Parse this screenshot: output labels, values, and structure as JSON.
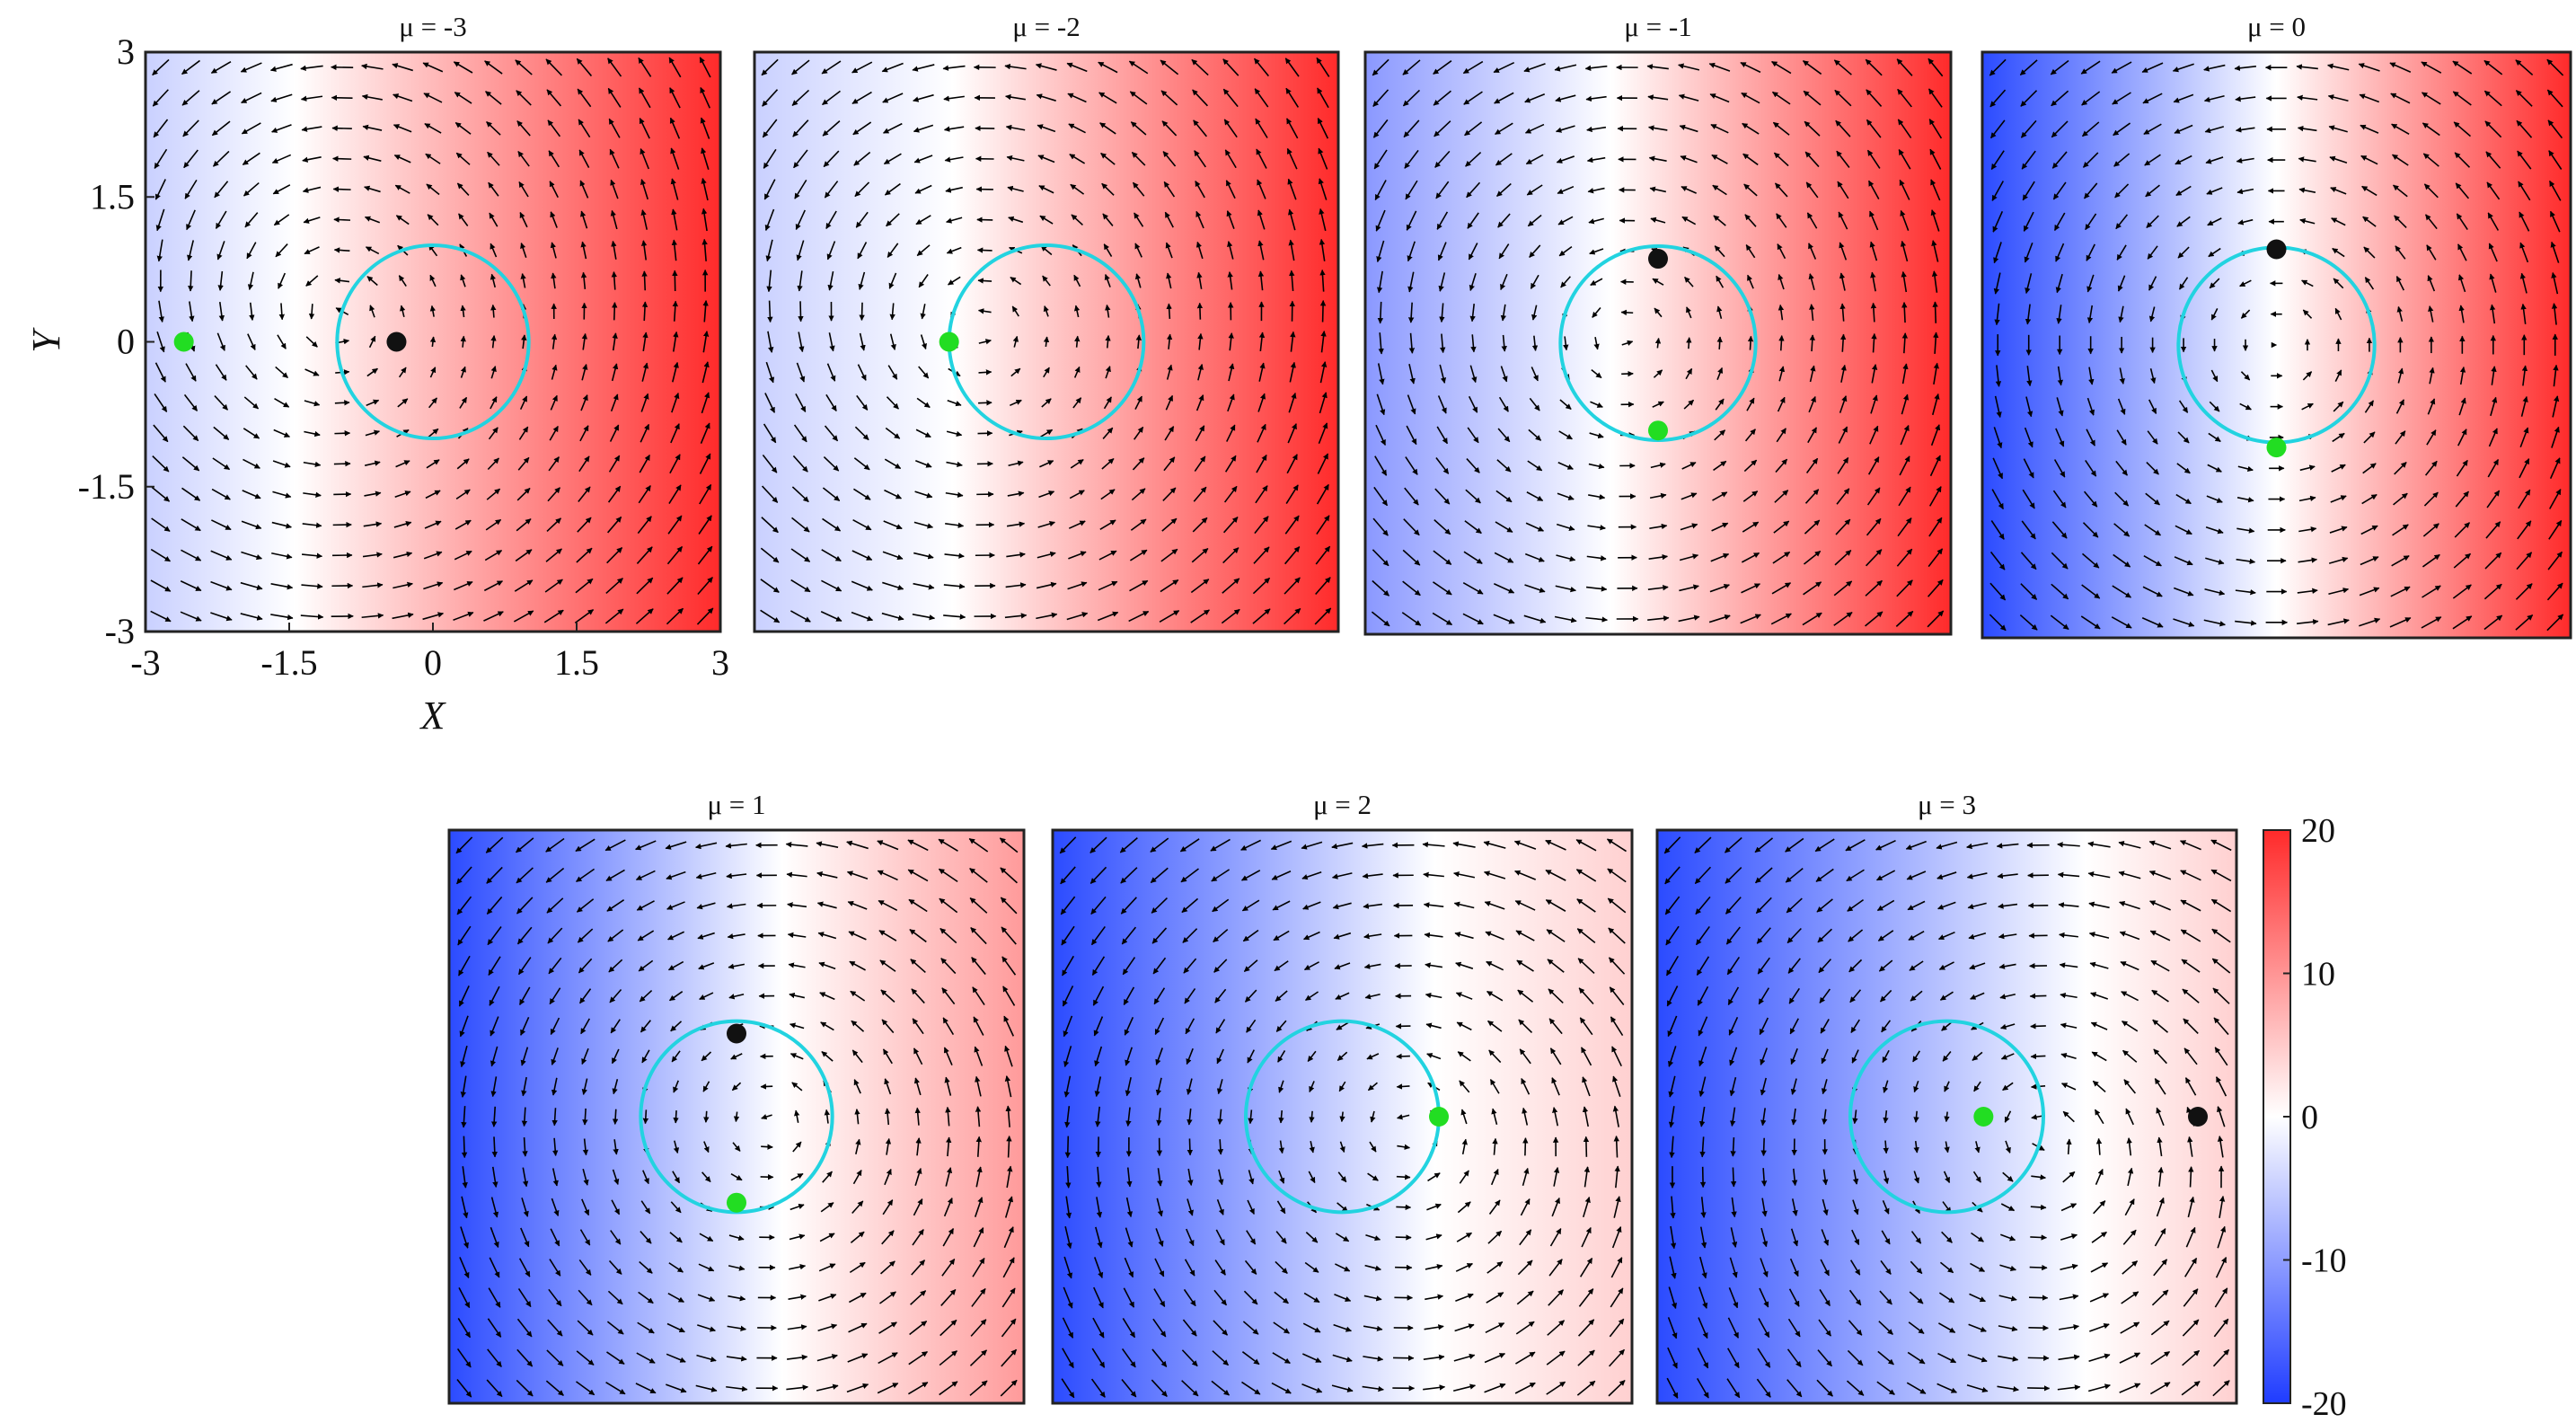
{
  "chart_data": {
    "type": "heatmap",
    "description_of_field": "quiver",
    "xlabel": "X",
    "ylabel": "Y",
    "xlim": [
      -3,
      3
    ],
    "ylim": [
      -3,
      3
    ],
    "xticks": [
      "-3",
      "-1.5",
      "0",
      "1.5",
      "3"
    ],
    "yticks": [
      "3",
      "1.5",
      "0",
      "-1.5",
      "-3"
    ],
    "colorbar": {
      "range": [
        -20,
        20
      ],
      "ticks": [
        "20",
        "10",
        "0",
        "-10",
        "-20"
      ],
      "colormap": [
        "#1f3cff",
        "#ffffff",
        "#ff2a2a"
      ]
    },
    "circle": {
      "center": [
        0,
        0
      ],
      "radius": 1,
      "color": "#22d3e0"
    },
    "point_colors": {
      "green": "#22dd22",
      "black": "#111111"
    },
    "panels": [
      {
        "title": "μ = -3",
        "mu": -3,
        "green": [
          -2.6,
          0
        ],
        "black": [
          -0.38,
          0
        ]
      },
      {
        "title": "μ = -2",
        "mu": -2,
        "green": [
          -1.0,
          0
        ],
        "black": null
      },
      {
        "title": "μ = -1",
        "mu": -1,
        "green": [
          0,
          -0.9
        ],
        "black": [
          0,
          0.87
        ]
      },
      {
        "title": "μ = 0",
        "mu": 0,
        "green": [
          0,
          -1.05
        ],
        "black": [
          0,
          0.98
        ]
      },
      {
        "title": "μ = 1",
        "mu": 1,
        "green": [
          0,
          -0.9
        ],
        "black": [
          0,
          0.87
        ]
      },
      {
        "title": "μ = 2",
        "mu": 2,
        "green": [
          1.0,
          0
        ],
        "black": null
      },
      {
        "title": "μ = 3",
        "mu": 3,
        "green": [
          0.38,
          0
        ],
        "black": [
          2.6,
          0
        ]
      }
    ]
  }
}
